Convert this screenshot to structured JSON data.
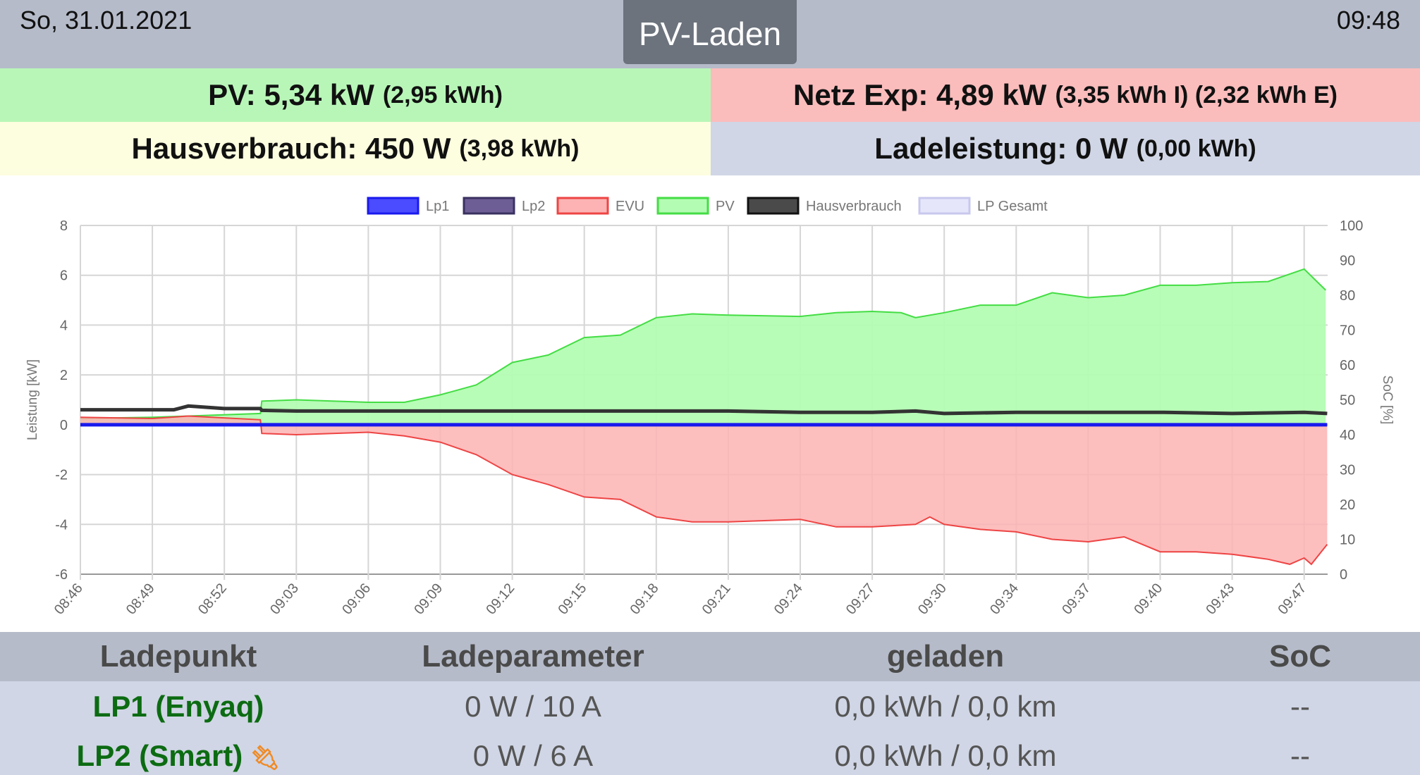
{
  "header": {
    "date": "So, 31.01.2021",
    "time": "09:48",
    "mode": "PV-Laden"
  },
  "summary": {
    "pv": {
      "main": "PV: 5,34 kW",
      "sub": "(2,95 kWh)",
      "color": "#b8f6b8"
    },
    "netz": {
      "main": "Netz Exp: 4,89 kW",
      "sub": "(3,35 kWh I) (2,32 kWh E)",
      "color": "#fbbcbc"
    },
    "haus": {
      "main": "Hausverbrauch: 450 W",
      "sub": "(3,98 kWh)",
      "color": "#fdfddf"
    },
    "lade": {
      "main": "Ladeleistung: 0 W",
      "sub": "(0,00 kWh)",
      "color": "#d0d6e5"
    }
  },
  "chart_data": {
    "type": "area",
    "ylabel": "Leistung [kW]",
    "y2label": "SoC [%]",
    "ylim": [
      -6,
      8
    ],
    "y2lim": [
      0,
      100
    ],
    "yticks": [
      "8",
      "6",
      "4",
      "2",
      "0",
      "-2",
      "-4",
      "-6"
    ],
    "y2ticks": [
      "100",
      "90",
      "80",
      "70",
      "60",
      "50",
      "40",
      "30",
      "20",
      "10",
      "0"
    ],
    "xticks": [
      "08:46",
      "08:49",
      "08:52",
      "09:03",
      "09:06",
      "09:09",
      "09:12",
      "09:15",
      "09:18",
      "09:21",
      "09:24",
      "09:27",
      "09:30",
      "09:34",
      "09:37",
      "09:40",
      "09:43",
      "09:47"
    ],
    "x_end": 17.32,
    "legend": [
      {
        "label": "Lp1",
        "fill": "#4b4bff",
        "stroke": "#1a1aee"
      },
      {
        "label": "Lp2",
        "fill": "#6d5f96",
        "stroke": "#3a3160"
      },
      {
        "label": "EVU",
        "fill": "#fdb3b3",
        "stroke": "#ee4444"
      },
      {
        "label": "PV",
        "fill": "#b3fcb3",
        "stroke": "#44dd44"
      },
      {
        "label": "Hausverbrauch",
        "fill": "#4a4a4a",
        "stroke": "#111111"
      },
      {
        "label": "LP Gesamt",
        "fill": "#e6e6fb",
        "stroke": "#c8c8ee"
      }
    ],
    "series": [
      {
        "name": "PV",
        "x": [
          0,
          1,
          1.5,
          2.5,
          2.52,
          3,
          3.5,
          4,
          4.5,
          5,
          5.5,
          6,
          6.5,
          7,
          7.5,
          8,
          8.5,
          9,
          10,
          10.5,
          11,
          11.4,
          11.6,
          12,
          12.5,
          13,
          13.5,
          14,
          14.5,
          15,
          15.5,
          16,
          16.5,
          17,
          17.3
        ],
        "values": [
          0.25,
          0.3,
          0.35,
          0.45,
          0.95,
          1.0,
          0.95,
          0.9,
          0.9,
          1.2,
          1.6,
          2.5,
          2.8,
          3.5,
          3.6,
          4.3,
          4.45,
          4.4,
          4.35,
          4.5,
          4.55,
          4.5,
          4.3,
          4.5,
          4.8,
          4.8,
          5.3,
          5.1,
          5.2,
          5.6,
          5.6,
          5.7,
          5.75,
          6.25,
          5.4
        ]
      },
      {
        "name": "EVU",
        "x": [
          0,
          1,
          1.5,
          2.5,
          2.52,
          3,
          3.5,
          4,
          4.5,
          5,
          5.5,
          6,
          6.5,
          7,
          7.5,
          8,
          8.5,
          9,
          10,
          10.5,
          11,
          11.6,
          11.8,
          12,
          12.5,
          13,
          13.5,
          14,
          14.5,
          15,
          15.5,
          16,
          16.5,
          16.8,
          17,
          17.1,
          17.32
        ],
        "values": [
          0.3,
          0.25,
          0.35,
          0.2,
          -0.35,
          -0.4,
          -0.35,
          -0.3,
          -0.45,
          -0.7,
          -1.2,
          -2.0,
          -2.4,
          -2.9,
          -3.0,
          -3.7,
          -3.9,
          -3.9,
          -3.8,
          -4.1,
          -4.1,
          -4.0,
          -3.7,
          -4.0,
          -4.2,
          -4.3,
          -4.6,
          -4.7,
          -4.5,
          -5.1,
          -5.1,
          -5.2,
          -5.4,
          -5.6,
          -5.35,
          -5.6,
          -4.8
        ]
      },
      {
        "name": "Hausverbrauch",
        "x": [
          0,
          1,
          1.3,
          1.5,
          2,
          2.5,
          2.52,
          3,
          4,
          5,
          6,
          7,
          8,
          9,
          10,
          11,
          11.6,
          12,
          13,
          14,
          15,
          16,
          17,
          17.32
        ],
        "values": [
          0.6,
          0.6,
          0.6,
          0.75,
          0.65,
          0.65,
          0.58,
          0.55,
          0.55,
          0.55,
          0.55,
          0.55,
          0.55,
          0.55,
          0.5,
          0.5,
          0.55,
          0.45,
          0.5,
          0.5,
          0.5,
          0.45,
          0.5,
          0.45
        ]
      },
      {
        "name": "Lp1",
        "x": [
          0,
          17.32
        ],
        "values": [
          0,
          0
        ]
      }
    ]
  },
  "table": {
    "headers": [
      "Ladepunkt",
      "Ladeparameter",
      "geladen",
      "SoC"
    ],
    "rows": [
      {
        "name": "LP1 (Enyaq)",
        "param": "0 W / 10 A",
        "charged": "0,0 kWh / 0,0 km",
        "soc": "--",
        "plug": false
      },
      {
        "name": "LP2 (Smart)",
        "param": "0 W / 6 A",
        "charged": "0,0 kWh / 0,0 km",
        "soc": "--",
        "plug": true
      }
    ],
    "lp_color": "#0c6b12",
    "plug_color": "#f08a24"
  }
}
